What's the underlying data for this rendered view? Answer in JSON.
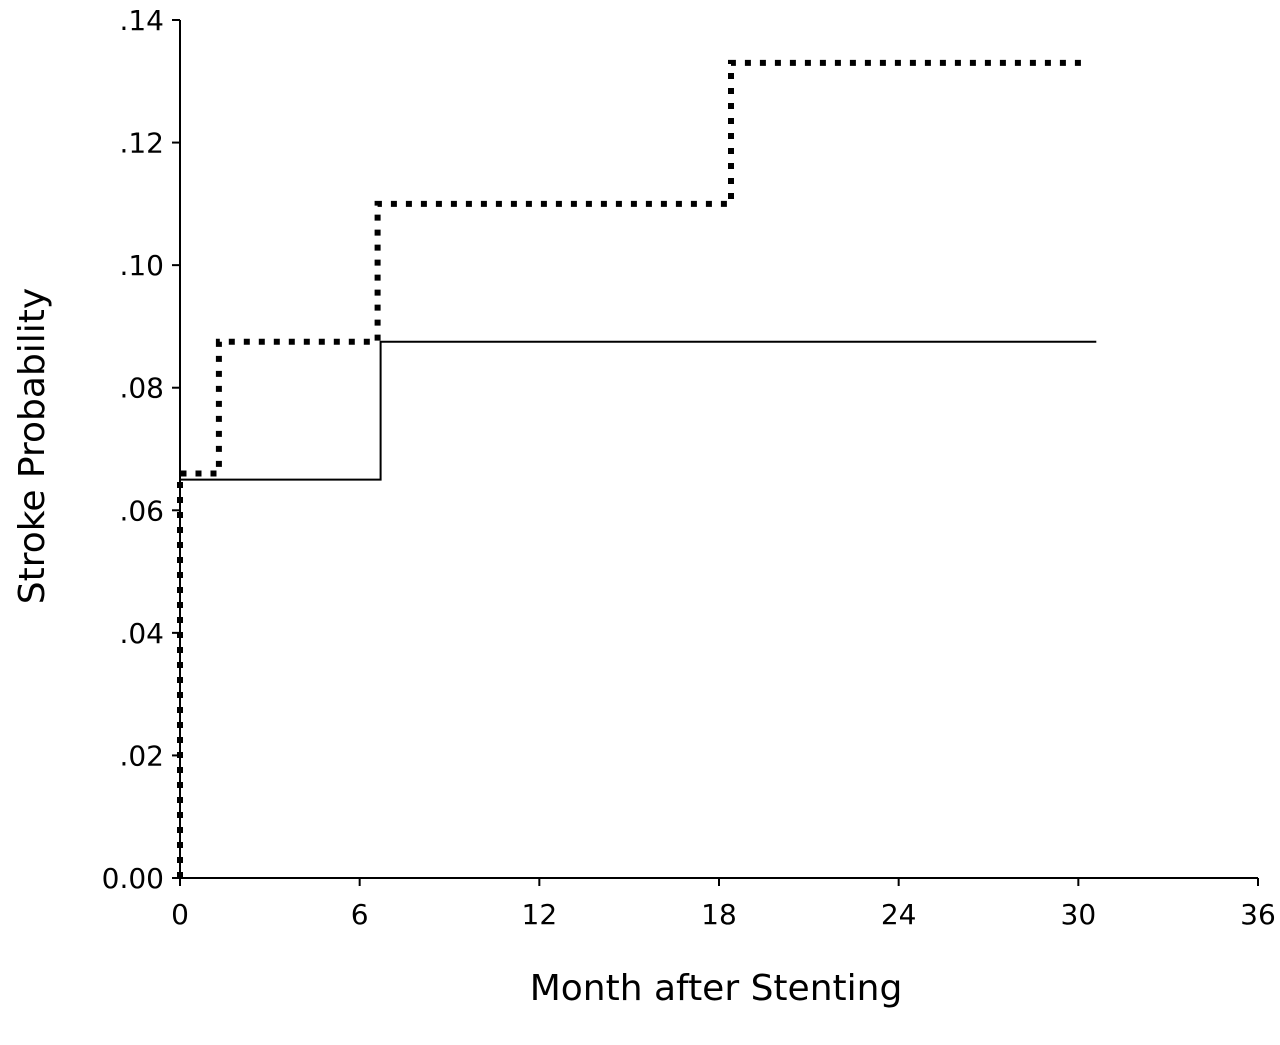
{
  "chart_data": {
    "type": "line",
    "xlabel": "Month after Stenting",
    "ylabel": "Stroke Probability",
    "xlim": [
      0,
      36
    ],
    "ylim": [
      0,
      0.14
    ],
    "xticks": [
      0,
      6,
      12,
      18,
      24,
      30,
      36
    ],
    "xtick_labels": [
      "0",
      "6",
      "12",
      "18",
      "24",
      "30",
      "36"
    ],
    "yticks": [
      0,
      0.02,
      0.04,
      0.06,
      0.08,
      0.1,
      0.12,
      0.14
    ],
    "ytick_labels": [
      "0.00",
      ".02",
      ".04",
      ".06",
      ".08",
      ".10",
      ".12",
      ".14"
    ],
    "grid": false,
    "step": true,
    "series": [
      {
        "style": "solid",
        "color": "#000000",
        "x": [
          0,
          0,
          6.7,
          6.7,
          30.6
        ],
        "y": [
          0,
          0.065,
          0.065,
          0.0875,
          0.0875
        ]
      },
      {
        "style": "dotted",
        "color": "#000000",
        "x": [
          0,
          0,
          1.3,
          1.3,
          6.6,
          6.6,
          18.4,
          18.4,
          30.3
        ],
        "y": [
          0,
          0.066,
          0.066,
          0.0875,
          0.0875,
          0.11,
          0.11,
          0.133,
          0.133
        ]
      }
    ]
  }
}
